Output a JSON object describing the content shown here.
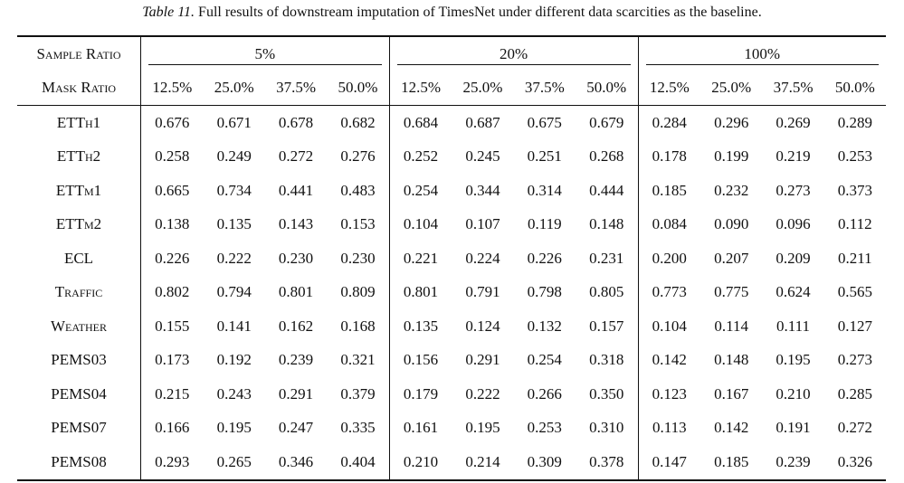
{
  "caption": {
    "label": "Table 11.",
    "text": "Full results of downstream imputation of TimesNet under different data scarcities as the baseline."
  },
  "header": {
    "sample_ratio_label": "Sample Ratio",
    "mask_ratio_label": "Mask Ratio",
    "groups": [
      "5%",
      "20%",
      "100%"
    ],
    "mask_ratios": [
      "12.5%",
      "25.0%",
      "37.5%",
      "50.0%",
      "12.5%",
      "25.0%",
      "37.5%",
      "50.0%",
      "12.5%",
      "25.0%",
      "37.5%",
      "50.0%"
    ]
  },
  "rows": [
    {
      "dataset": "ETTh1",
      "values": [
        "0.676",
        "0.671",
        "0.678",
        "0.682",
        "0.684",
        "0.687",
        "0.675",
        "0.679",
        "0.284",
        "0.296",
        "0.269",
        "0.289"
      ]
    },
    {
      "dataset": "ETTh2",
      "values": [
        "0.258",
        "0.249",
        "0.272",
        "0.276",
        "0.252",
        "0.245",
        "0.251",
        "0.268",
        "0.178",
        "0.199",
        "0.219",
        "0.253"
      ]
    },
    {
      "dataset": "ETTm1",
      "values": [
        "0.665",
        "0.734",
        "0.441",
        "0.483",
        "0.254",
        "0.344",
        "0.314",
        "0.444",
        "0.185",
        "0.232",
        "0.273",
        "0.373"
      ]
    },
    {
      "dataset": "ETTm2",
      "values": [
        "0.138",
        "0.135",
        "0.143",
        "0.153",
        "0.104",
        "0.107",
        "0.119",
        "0.148",
        "0.084",
        "0.090",
        "0.096",
        "0.112"
      ]
    },
    {
      "dataset": "ECL",
      "values": [
        "0.226",
        "0.222",
        "0.230",
        "0.230",
        "0.221",
        "0.224",
        "0.226",
        "0.231",
        "0.200",
        "0.207",
        "0.209",
        "0.211"
      ]
    },
    {
      "dataset": "Traffic",
      "values": [
        "0.802",
        "0.794",
        "0.801",
        "0.809",
        "0.801",
        "0.791",
        "0.798",
        "0.805",
        "0.773",
        "0.775",
        "0.624",
        "0.565"
      ]
    },
    {
      "dataset": "Weather",
      "values": [
        "0.155",
        "0.141",
        "0.162",
        "0.168",
        "0.135",
        "0.124",
        "0.132",
        "0.157",
        "0.104",
        "0.114",
        "0.111",
        "0.127"
      ]
    },
    {
      "dataset": "PEMS03",
      "values": [
        "0.173",
        "0.192",
        "0.239",
        "0.321",
        "0.156",
        "0.291",
        "0.254",
        "0.318",
        "0.142",
        "0.148",
        "0.195",
        "0.273"
      ]
    },
    {
      "dataset": "PEMS04",
      "values": [
        "0.215",
        "0.243",
        "0.291",
        "0.379",
        "0.179",
        "0.222",
        "0.266",
        "0.350",
        "0.123",
        "0.167",
        "0.210",
        "0.285"
      ]
    },
    {
      "dataset": "PEMS07",
      "values": [
        "0.166",
        "0.195",
        "0.247",
        "0.335",
        "0.161",
        "0.195",
        "0.253",
        "0.310",
        "0.113",
        "0.142",
        "0.191",
        "0.272"
      ]
    },
    {
      "dataset": "PEMS08",
      "values": [
        "0.293",
        "0.265",
        "0.346",
        "0.404",
        "0.210",
        "0.214",
        "0.309",
        "0.378",
        "0.147",
        "0.185",
        "0.239",
        "0.326"
      ]
    }
  ]
}
